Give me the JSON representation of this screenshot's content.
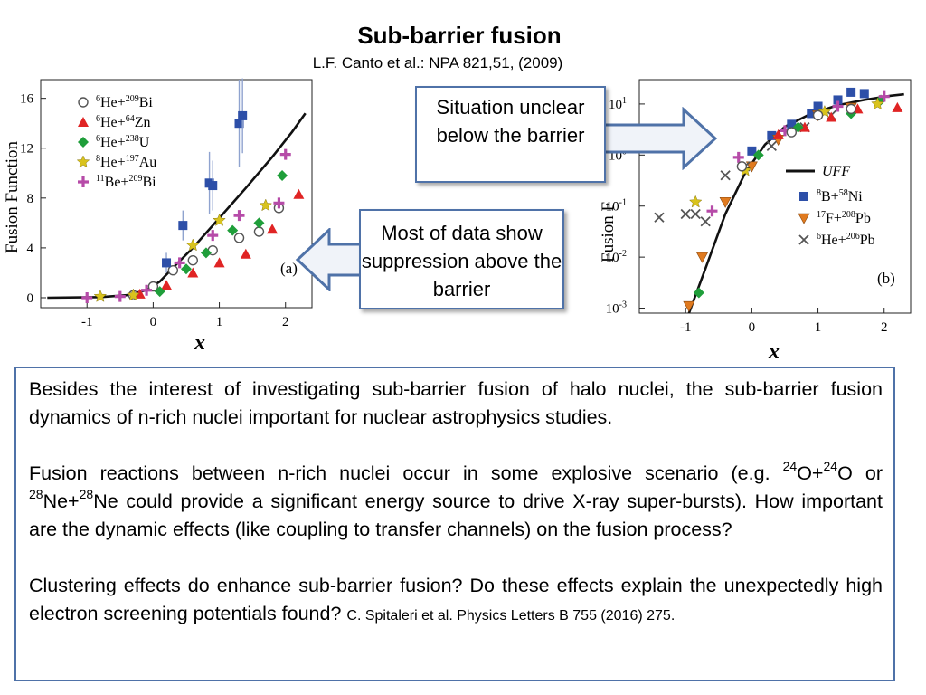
{
  "slide": {
    "title": "Sub-barrier fusion",
    "reference": "L.F.  Canto et al.: NPA 821,51, (2009)"
  },
  "callouts": {
    "upper": "Situation unclear below the barrier",
    "lower": "Most of data show suppression above the barrier"
  },
  "body": {
    "p1": "Besides the interest of investigating sub-barrier fusion of halo nuclei, the sub-barrier fusion dynamics of n-rich nuclei important for nuclear astrophysics studies.",
    "p2_a": "Fusion reactions between n-rich nuclei occur in some explosive scenario (e.g. ",
    "p2_m1": "24",
    "p2_e1": "O+",
    "p2_m2": "24",
    "p2_e2": "O   or ",
    "p2_m3": "28",
    "p2_e3": "Ne+",
    "p2_m4": "28",
    "p2_b": "Ne could provide a significant energy source to drive X-ray super-bursts). How important are the dynamic effects (like coupling  to transfer channels) on the fusion process?",
    "p3": "Clustering effects do enhance sub-barrier fusion? Do these effects explain the unexpectedly high  electron screening potentials found? ",
    "p3_ref": "C. Spitaleri et al. Physics Letters B 755 (2016) 275."
  },
  "colors": {
    "accent": "#4f72a8",
    "arrow_fill": "#f0f3f9"
  },
  "chart_data": [
    {
      "type": "scatter",
      "panel": "(a)",
      "xlabel": "x",
      "ylabel": "Fusion Function",
      "xlim": [
        -1.7,
        2.4
      ],
      "ylim": [
        -0.8,
        17.5
      ],
      "xticks": [
        -1,
        0,
        1,
        2
      ],
      "xtick_labels": [
        "-1",
        "0",
        "1",
        "2"
      ],
      "yticks": [
        0,
        4,
        8,
        12,
        16
      ],
      "ytick_labels": [
        "0",
        "4",
        "8",
        "12",
        "16"
      ],
      "curve": {
        "name": "UFF",
        "x": [
          -1.6,
          -0.8,
          -0.4,
          -0.1,
          0.1,
          0.3,
          0.6,
          1.0,
          1.4,
          1.8,
          2.1,
          2.3
        ],
        "y": [
          0,
          0.05,
          0.2,
          0.6,
          1.3,
          2.4,
          4.0,
          6.4,
          8.8,
          11.3,
          13.3,
          14.8
        ]
      },
      "series": [
        {
          "name": "He+Bi",
          "label_pre": "6",
          "label_mid": "He+",
          "label_sup": "209",
          "label_post": "Bi",
          "marker": "circle",
          "color": "#555555",
          "x": [
            -0.3,
            0.0,
            0.3,
            0.6,
            0.9,
            1.3,
            1.6,
            1.9
          ],
          "y": [
            0.2,
            0.9,
            2.2,
            3.0,
            3.8,
            4.8,
            5.3,
            7.2
          ]
        },
        {
          "name": "He+Zn",
          "label_pre": "6",
          "label_mid": "He+",
          "label_sup": "64",
          "label_post": "Zn",
          "marker": "triangle",
          "color": "#e02424",
          "x": [
            -0.2,
            0.2,
            0.6,
            1.0,
            1.4,
            1.8,
            2.2
          ],
          "y": [
            0.3,
            1.0,
            2.0,
            2.8,
            3.5,
            5.5,
            8.3
          ]
        },
        {
          "name": "He+U",
          "label_pre": "6",
          "label_mid": "He+",
          "label_sup": "238",
          "label_post": "U",
          "marker": "diamond",
          "color": "#1f9e3a",
          "x": [
            0.1,
            0.5,
            0.8,
            1.2,
            1.6,
            1.95
          ],
          "y": [
            0.5,
            2.3,
            3.6,
            5.4,
            6.0,
            9.8
          ]
        },
        {
          "name": "He+Au",
          "label_pre": "8",
          "label_mid": "He+",
          "label_sup": "197",
          "label_post": "Au",
          "marker": "star",
          "color": "#d9c31d",
          "x": [
            -0.8,
            -0.3,
            0.6,
            1.0,
            1.7
          ],
          "y": [
            0.1,
            0.2,
            4.2,
            6.2,
            7.4
          ]
        },
        {
          "name": "Be+Bi",
          "label_pre": "11",
          "label_mid": "Be+",
          "label_sup": "209",
          "label_post": "Bi",
          "marker": "plus",
          "color": "#b64ba8",
          "x": [
            -1.0,
            -0.5,
            -0.1,
            0.4,
            0.9,
            1.3,
            1.9,
            2.0
          ],
          "y": [
            0.0,
            0.1,
            0.6,
            2.8,
            5.0,
            6.6,
            7.6,
            11.5
          ]
        },
        {
          "name": "B+Ni",
          "label_pre": "8",
          "label_mid": "B+",
          "label_sup": "58",
          "label_post": "Ni",
          "marker": "square",
          "color": "#2d4fa8",
          "x": [
            0.2,
            0.45,
            0.85,
            0.9,
            1.3,
            1.35
          ],
          "y": [
            2.8,
            5.8,
            9.2,
            9.0,
            14.0,
            14.6
          ],
          "err": [
            0.8,
            1.2,
            2.5,
            2.0,
            3.5,
            3.0
          ],
          "legend": false
        }
      ]
    },
    {
      "type": "scatter",
      "panel": "(b)",
      "yscale": "log",
      "xlabel": "x",
      "ylabel": "Fusion F",
      "xlim": [
        -1.7,
        2.4
      ],
      "ylim": [
        0.0008,
        30
      ],
      "xticks": [
        -1,
        0,
        1,
        2
      ],
      "xtick_labels": [
        "-1",
        "0",
        "1",
        "2"
      ],
      "yticks": [
        0.001,
        0.01,
        0.1,
        1,
        10
      ],
      "ytick_base": "10",
      "ytick_exps": [
        "-3",
        "-2",
        "-1",
        "0",
        "1"
      ],
      "curve": {
        "name": "UFF",
        "x": [
          -0.95,
          -0.7,
          -0.4,
          -0.1,
          0.2,
          0.5,
          0.9,
          1.3,
          1.7,
          2.1,
          2.3
        ],
        "y": [
          0.0008,
          0.006,
          0.07,
          0.45,
          1.6,
          3.6,
          6.5,
          9.5,
          12,
          14.5,
          15.5
        ]
      },
      "series": [
        {
          "name": "B+Ni",
          "label_pre": "8",
          "label_mid": "B+",
          "label_sup": "58",
          "label_post": "Ni",
          "marker": "square",
          "color": "#2d4fa8",
          "x": [
            0.0,
            0.3,
            0.6,
            0.9,
            1.0,
            1.3,
            1.5,
            1.7
          ],
          "y": [
            1.2,
            2.4,
            4.0,
            6.5,
            9.0,
            12.0,
            17.0,
            16.0
          ]
        },
        {
          "name": "F+Pb",
          "label_pre": "17",
          "label_mid": "F+",
          "label_sup": "208",
          "label_post": "Pb",
          "marker": "tridown",
          "color": "#e07a1f",
          "x": [
            -0.95,
            -0.75,
            -0.4,
            0.0,
            0.4,
            1.0,
            1.5
          ],
          "y": [
            0.0011,
            0.01,
            0.12,
            0.6,
            2.0,
            6.0,
            8.5
          ]
        },
        {
          "name": "He+Pb",
          "label_pre": "6",
          "label_mid": "He+",
          "label_sup": "206",
          "label_post": "Pb",
          "marker": "cross",
          "color": "#555555",
          "x": [
            -1.4,
            -1.0,
            -0.85,
            -0.7,
            -0.4,
            -0.1,
            0.3,
            0.8,
            1.2
          ],
          "y": [
            0.06,
            0.07,
            0.07,
            0.05,
            0.4,
            0.6,
            1.5,
            3.5,
            6.0
          ]
        },
        {
          "name": "He+Zn",
          "marker": "triangle",
          "color": "#e02424",
          "x": [
            0.4,
            0.8,
            1.2,
            1.6,
            2.2
          ],
          "y": [
            2.5,
            3.5,
            5.5,
            8.0,
            8.5
          ],
          "legend": false
        },
        {
          "name": "He+U",
          "marker": "diamond",
          "color": "#1f9e3a",
          "x": [
            -0.8,
            0.1,
            0.7,
            1.5,
            1.95
          ],
          "y": [
            0.002,
            1.0,
            3.5,
            6.5,
            12.0
          ],
          "legend": false
        },
        {
          "name": "He+Au",
          "marker": "star",
          "color": "#d9c31d",
          "x": [
            -0.85,
            -0.1,
            1.1,
            1.9
          ],
          "y": [
            0.12,
            0.5,
            7.0,
            10.0
          ],
          "legend": false
        },
        {
          "name": "Be+Bi",
          "marker": "plus",
          "color": "#b64ba8",
          "x": [
            -0.6,
            -0.2,
            0.5,
            1.3,
            2.0
          ],
          "y": [
            0.08,
            0.9,
            3.0,
            9.0,
            14.0
          ],
          "legend": false
        },
        {
          "name": "He+Bi",
          "marker": "circle",
          "color": "#555555",
          "x": [
            -0.15,
            0.6,
            1.0,
            1.5
          ],
          "y": [
            0.6,
            2.8,
            6.0,
            8.0
          ],
          "legend": false
        }
      ]
    }
  ]
}
